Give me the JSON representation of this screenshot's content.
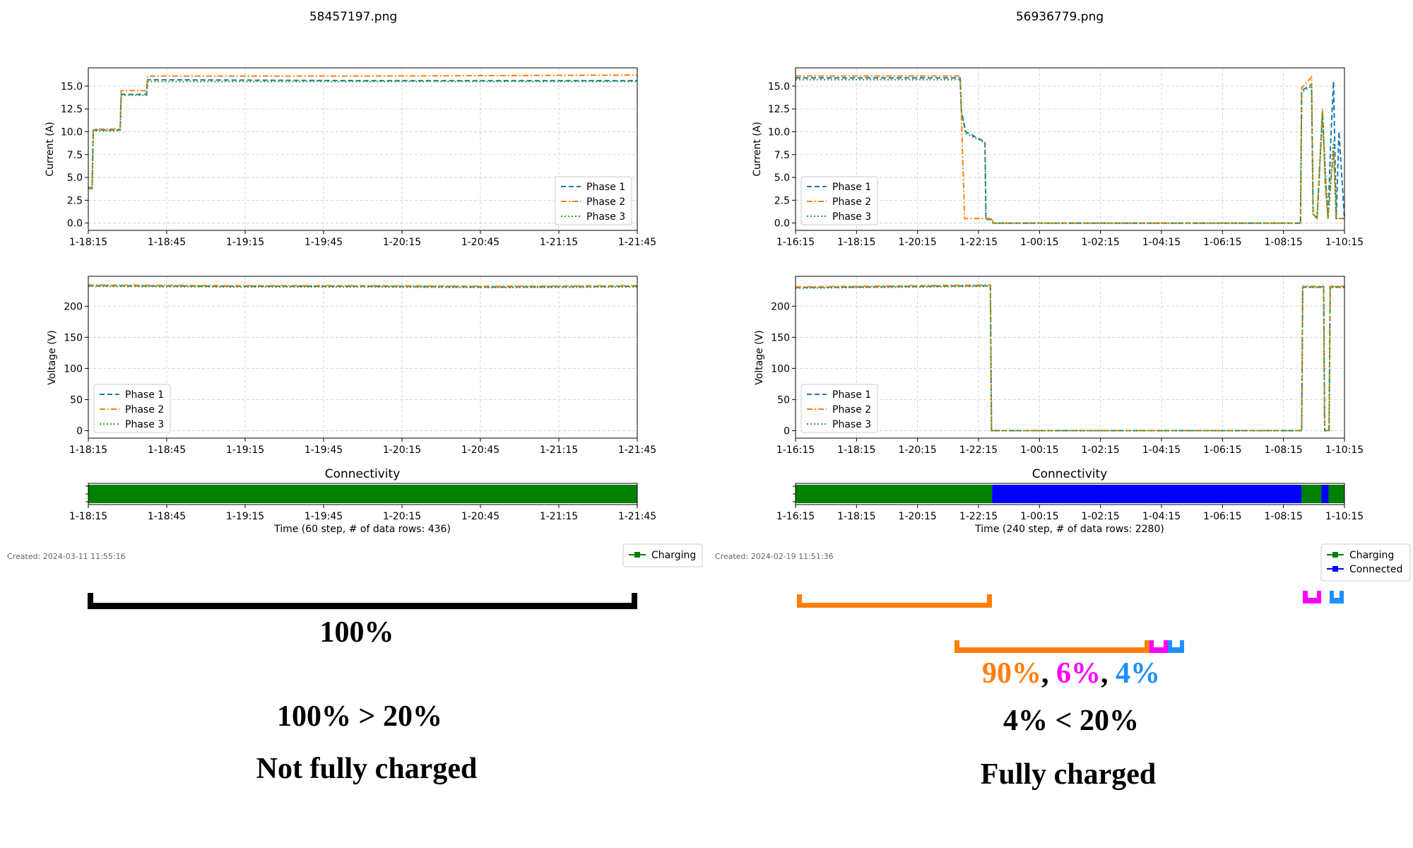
{
  "colors": {
    "phase1": "#1f77b4",
    "phase2": "#ff7f0e",
    "phase3": "#2ca02c",
    "charging": "#008000",
    "connected": "#0000ff",
    "bracket_orange": "#ff7f0e",
    "bracket_magenta": "#ff00ff",
    "bracket_blue": "#1e90ff"
  },
  "legend_labels": {
    "phase1": "Phase 1",
    "phase2": "Phase 2",
    "phase3": "Phase 3"
  },
  "panels": [
    {
      "filename": "58457197.png",
      "created": "Created: 2024-03-11 11:55:16",
      "time_ticks": [
        "1-18:15",
        "1-18:45",
        "1-19:15",
        "1-19:45",
        "1-20:15",
        "1-20:45",
        "1-21:15",
        "1-21:45"
      ],
      "current_legend_loc": "lower-right",
      "voltage_legend_loc": "lower-left",
      "connectivity_title": "Connectivity",
      "connectivity_xlabel": "Time (60 step, # of data rows: 436)",
      "connectivity_legend": [
        "Charging"
      ],
      "bracket_label": "100%",
      "comparison": "100% > 20%",
      "verdict": "Not fully charged"
    },
    {
      "filename": "56936779.png",
      "created": "Created: 2024-02-19 11:51:36",
      "time_ticks": [
        "1-16:15",
        "1-18:15",
        "1-20:15",
        "1-22:15",
        "1-00:15",
        "1-02:15",
        "1-04:15",
        "1-06:15",
        "1-08:15",
        "1-10:15"
      ],
      "current_legend_loc": "lower-left",
      "voltage_legend_loc": "lower-left",
      "connectivity_title": "Connectivity",
      "connectivity_xlabel": "Time (240 step, # of data rows: 2280)",
      "connectivity_legend": [
        "Charging",
        "Connected"
      ],
      "bracket_percentages": [
        "90%",
        "6%",
        "4%"
      ],
      "bracket_separator": ", ",
      "comparison": "4% < 20%",
      "verdict": "Fully charged"
    }
  ],
  "chart_data": [
    {
      "type": "line",
      "panel": 0,
      "ylabel": "Current (A)",
      "ylim": [
        -0.8,
        17
      ],
      "yticks": [
        "0.0",
        "2.5",
        "5.0",
        "7.5",
        "10.0",
        "12.5",
        "15.0"
      ],
      "x_range": [
        0,
        1
      ],
      "grid": true,
      "series": [
        {
          "name": "Phase 1",
          "style": "dashed",
          "points": [
            [
              0,
              3.8
            ],
            [
              0.007,
              3.8
            ],
            [
              0.009,
              10.2
            ],
            [
              0.058,
              10.2
            ],
            [
              0.06,
              14.1
            ],
            [
              0.106,
              14.1
            ],
            [
              0.108,
              15.7
            ],
            [
              0.5,
              15.6
            ],
            [
              1,
              15.6
            ]
          ]
        },
        {
          "name": "Phase 2",
          "style": "dashdot",
          "points": [
            [
              0,
              3.9
            ],
            [
              0.007,
              3.9
            ],
            [
              0.009,
              10.3
            ],
            [
              0.058,
              10.3
            ],
            [
              0.06,
              14.5
            ],
            [
              0.106,
              14.5
            ],
            [
              0.108,
              16.1
            ],
            [
              0.5,
              16.1
            ],
            [
              1,
              16.2
            ]
          ]
        },
        {
          "name": "Phase 3",
          "style": "dotted",
          "points": [
            [
              0,
              3.8
            ],
            [
              0.007,
              3.8
            ],
            [
              0.009,
              10.1
            ],
            [
              0.058,
              10.1
            ],
            [
              0.06,
              14.0
            ],
            [
              0.106,
              14.0
            ],
            [
              0.108,
              15.5
            ],
            [
              0.5,
              15.5
            ],
            [
              1,
              15.5
            ]
          ]
        }
      ]
    },
    {
      "type": "line",
      "panel": 0,
      "ylabel": "Voltage (V)",
      "ylim": [
        -12,
        248
      ],
      "yticks": [
        "0",
        "50",
        "100",
        "150",
        "200"
      ],
      "x_range": [
        0,
        1
      ],
      "grid": true,
      "series": [
        {
          "name": "Phase 1",
          "style": "dashed",
          "points": [
            [
              0,
              233
            ],
            [
              0.25,
              232
            ],
            [
              0.5,
              232
            ],
            [
              0.75,
              231
            ],
            [
              1,
              232
            ]
          ]
        },
        {
          "name": "Phase 2",
          "style": "dashdot",
          "points": [
            [
              0,
              234
            ],
            [
              0.25,
              233
            ],
            [
              0.5,
              233
            ],
            [
              0.75,
              232
            ],
            [
              1,
              233
            ]
          ]
        },
        {
          "name": "Phase 3",
          "style": "dotted",
          "points": [
            [
              0,
              232
            ],
            [
              0.25,
              231
            ],
            [
              0.5,
              231
            ],
            [
              0.75,
              230
            ],
            [
              1,
              231
            ]
          ]
        }
      ]
    },
    {
      "type": "bar",
      "panel": 0,
      "title": "Connectivity",
      "segments": [
        {
          "state": "Charging",
          "start": 0,
          "end": 1
        }
      ]
    },
    {
      "type": "line",
      "panel": 1,
      "ylabel": "Current (A)",
      "ylim": [
        -0.8,
        17
      ],
      "yticks": [
        "0.0",
        "2.5",
        "5.0",
        "7.5",
        "10.0",
        "12.5",
        "15.0"
      ],
      "x_range": [
        0,
        1
      ],
      "grid": true,
      "series": [
        {
          "name": "Phase 1",
          "style": "dashed",
          "points": [
            [
              0,
              15.9
            ],
            [
              0.3,
              15.9
            ],
            [
              0.302,
              12.3
            ],
            [
              0.31,
              10
            ],
            [
              0.345,
              8.9
            ],
            [
              0.347,
              0.4
            ],
            [
              0.358,
              0.4
            ],
            [
              0.36,
              0
            ],
            [
              0.92,
              0
            ],
            [
              0.922,
              14.5
            ],
            [
              0.94,
              15.2
            ],
            [
              0.943,
              1
            ],
            [
              0.95,
              0.5
            ],
            [
              0.96,
              12.2
            ],
            [
              0.965,
              5
            ],
            [
              0.97,
              0.5
            ],
            [
              0.975,
              9
            ],
            [
              0.98,
              15.5
            ],
            [
              0.985,
              0.5
            ],
            [
              0.99,
              10
            ],
            [
              1,
              0.5
            ]
          ]
        },
        {
          "name": "Phase 2",
          "style": "dashdot",
          "points": [
            [
              0,
              16.1
            ],
            [
              0.3,
              16.1
            ],
            [
              0.302,
              12.0
            ],
            [
              0.308,
              0.5
            ],
            [
              0.358,
              0.5
            ],
            [
              0.36,
              0
            ],
            [
              0.92,
              0
            ],
            [
              0.922,
              14.8
            ],
            [
              0.94,
              16
            ],
            [
              0.943,
              1
            ],
            [
              0.95,
              0.5
            ],
            [
              0.96,
              12.5
            ],
            [
              0.965,
              4
            ],
            [
              0.97,
              0.5
            ],
            [
              0.98,
              8
            ],
            [
              0.985,
              0.5
            ],
            [
              1,
              0.5
            ]
          ]
        },
        {
          "name": "Phase 3",
          "style": "dotted",
          "points": [
            [
              0,
              15.7
            ],
            [
              0.3,
              15.7
            ],
            [
              0.302,
              12.2
            ],
            [
              0.31,
              9.8
            ],
            [
              0.345,
              8.8
            ],
            [
              0.347,
              0.4
            ],
            [
              0.358,
              0.4
            ],
            [
              0.36,
              0
            ],
            [
              0.92,
              0
            ],
            [
              0.922,
              14.3
            ],
            [
              0.94,
              15.0
            ],
            [
              0.943,
              1
            ],
            [
              0.95,
              0.5
            ],
            [
              0.96,
              12.0
            ],
            [
              0.965,
              6
            ],
            [
              0.97,
              0.5
            ],
            [
              0.98,
              9
            ],
            [
              0.985,
              0.5
            ],
            [
              1,
              0.5
            ]
          ]
        }
      ]
    },
    {
      "type": "line",
      "panel": 1,
      "ylabel": "Voltage (V)",
      "ylim": [
        -12,
        248
      ],
      "yticks": [
        "0",
        "50",
        "100",
        "150",
        "200"
      ],
      "x_range": [
        0,
        1
      ],
      "grid": true,
      "series": [
        {
          "name": "Phase 1",
          "style": "dashed",
          "points": [
            [
              0,
              230
            ],
            [
              0.355,
              233
            ],
            [
              0.357,
              0
            ],
            [
              0.922,
              0
            ],
            [
              0.924,
              231
            ],
            [
              0.962,
              231
            ],
            [
              0.964,
              0
            ],
            [
              0.972,
              0
            ],
            [
              0.974,
              231
            ],
            [
              1,
              231
            ]
          ]
        },
        {
          "name": "Phase 2",
          "style": "dashdot",
          "points": [
            [
              0,
              231
            ],
            [
              0.355,
              234
            ],
            [
              0.357,
              0
            ],
            [
              0.922,
              0
            ],
            [
              0.924,
              232
            ],
            [
              0.962,
              232
            ],
            [
              0.964,
              0
            ],
            [
              0.972,
              0
            ],
            [
              0.974,
              232
            ],
            [
              1,
              232
            ]
          ]
        },
        {
          "name": "Phase 3",
          "style": "dotted",
          "points": [
            [
              0,
              229
            ],
            [
              0.355,
              232
            ],
            [
              0.357,
              0
            ],
            [
              0.922,
              0
            ],
            [
              0.924,
              230
            ],
            [
              0.962,
              230
            ],
            [
              0.964,
              0
            ],
            [
              0.972,
              0
            ],
            [
              0.974,
              230
            ],
            [
              1,
              230
            ]
          ]
        }
      ]
    },
    {
      "type": "bar",
      "panel": 1,
      "title": "Connectivity",
      "segments": [
        {
          "state": "Charging",
          "start": 0,
          "end": 0.358
        },
        {
          "state": "Connected",
          "start": 0.358,
          "end": 0.922
        },
        {
          "state": "Charging",
          "start": 0.922,
          "end": 0.958
        },
        {
          "state": "Connected",
          "start": 0.958,
          "end": 0.971
        },
        {
          "state": "Charging",
          "start": 0.971,
          "end": 1
        }
      ]
    }
  ]
}
